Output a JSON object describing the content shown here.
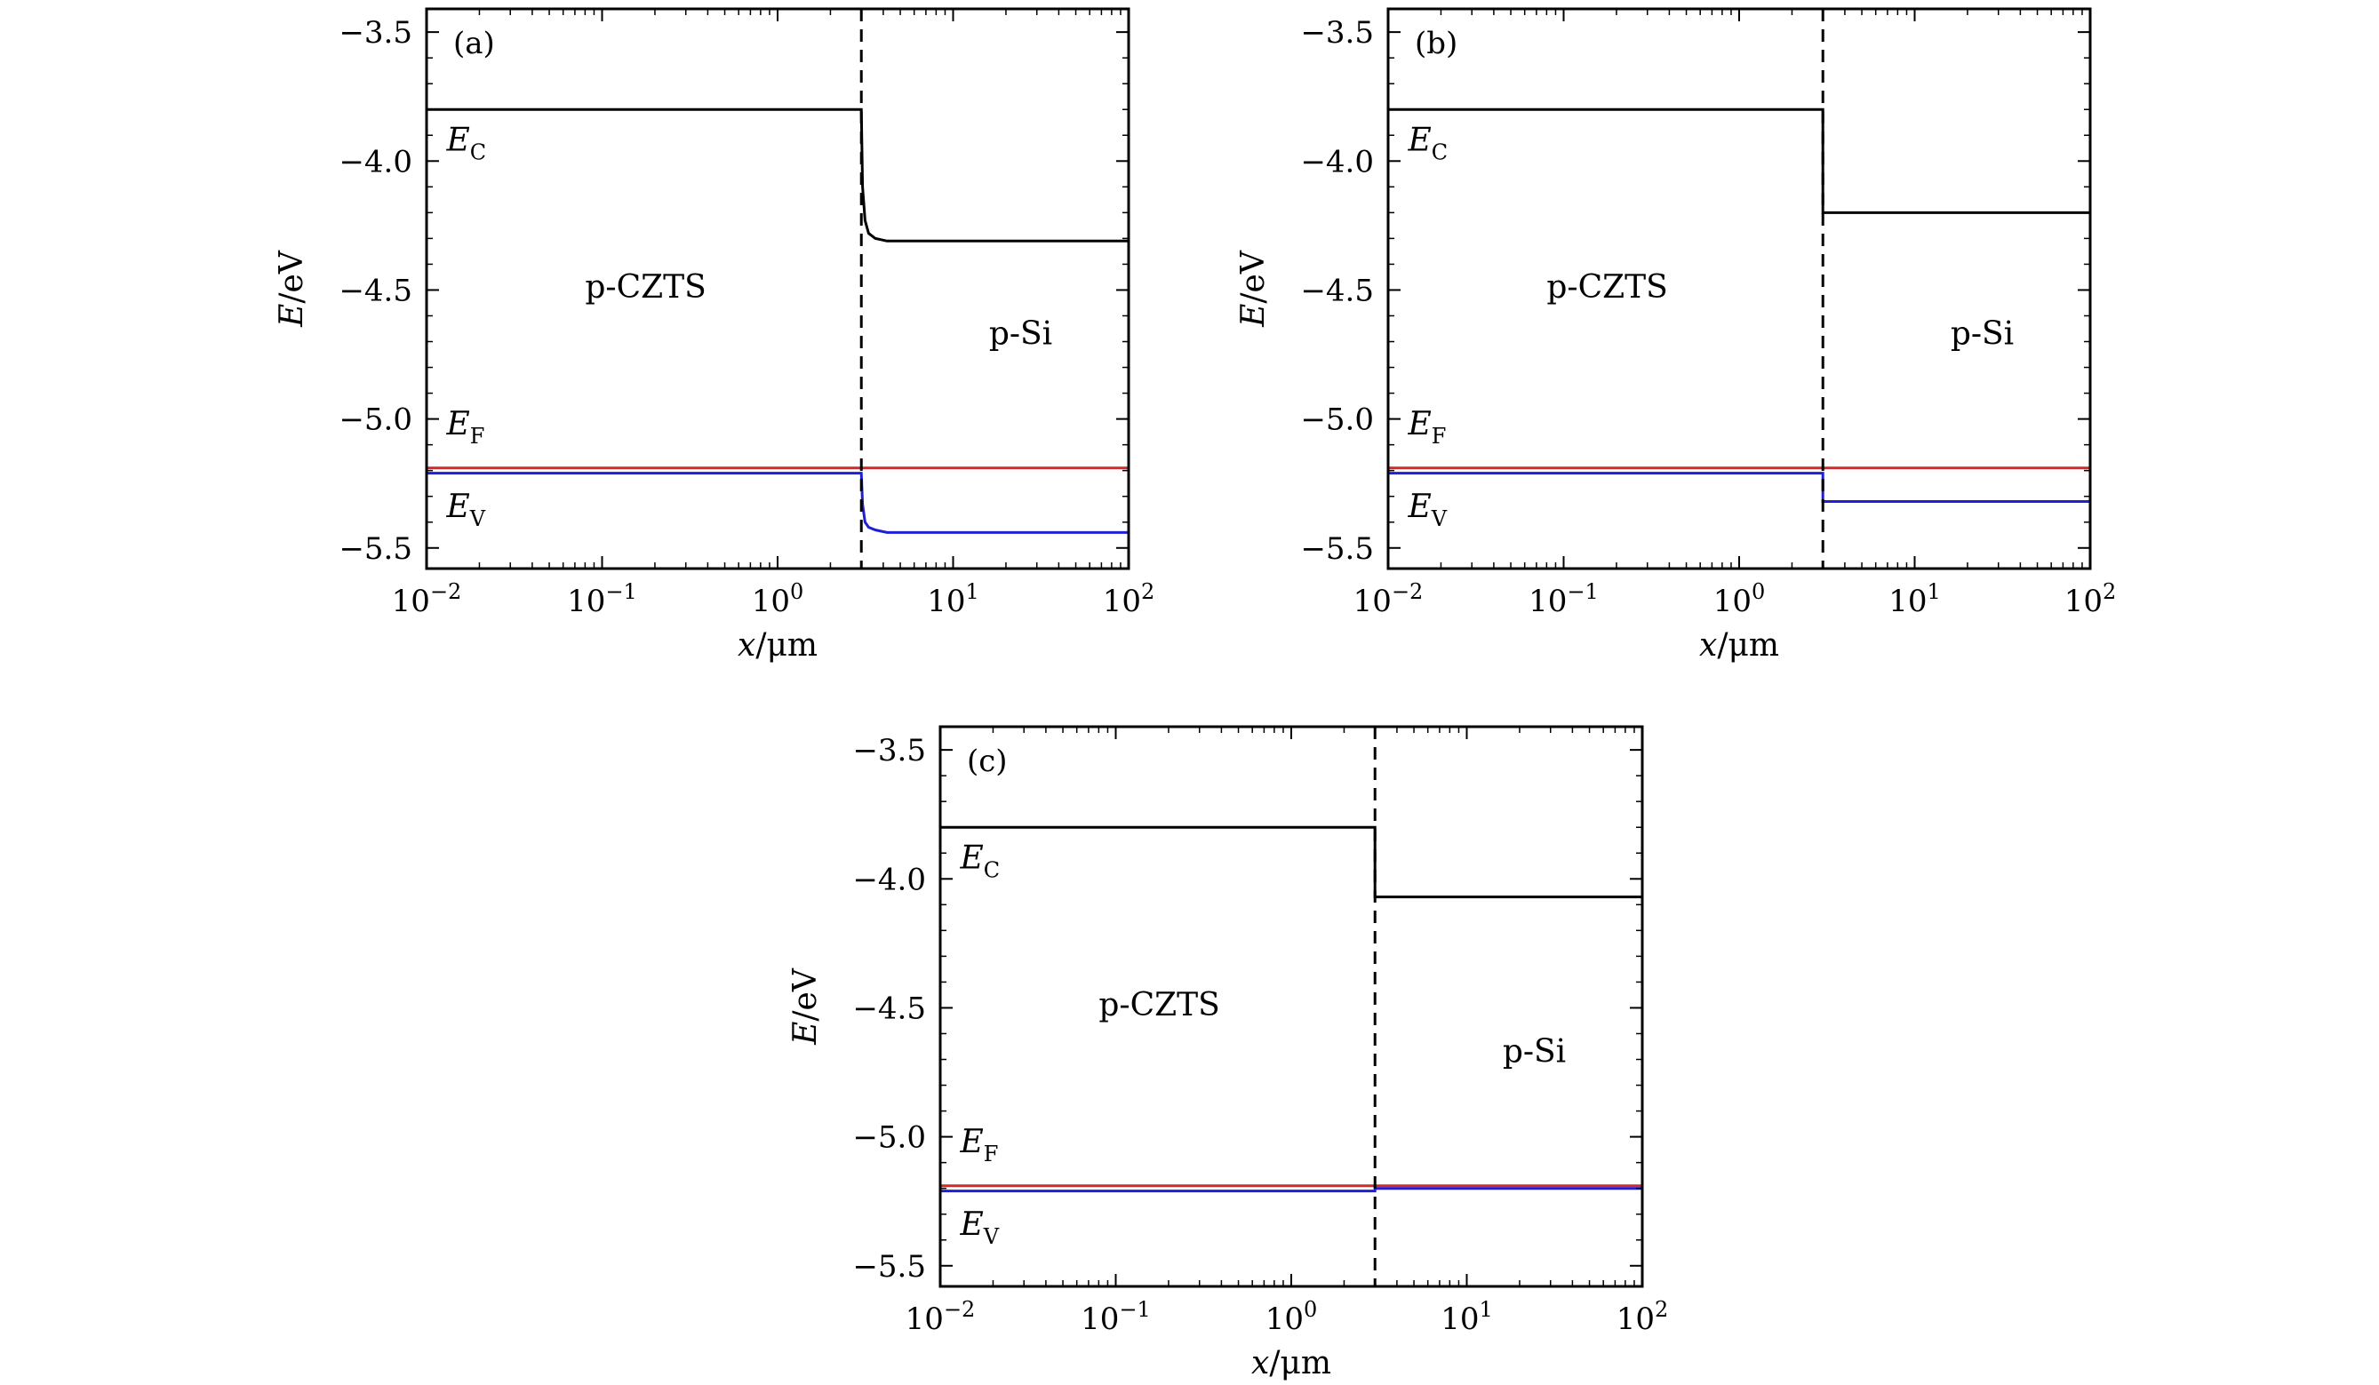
{
  "figure": {
    "panels": [
      {
        "id": "a",
        "label": "(a)"
      },
      {
        "id": "b",
        "label": "(b)"
      },
      {
        "id": "c",
        "label": "(c)"
      }
    ]
  },
  "chart_data": [
    {
      "type": "line",
      "panel_label": "(a)",
      "xlabel": "x/μm",
      "ylabel": "E/eV",
      "x_scale": "log",
      "xlim": [
        0.01,
        100
      ],
      "ylim": [
        -5.58,
        -3.41
      ],
      "xticks": [
        0.01,
        0.1,
        1,
        10,
        100
      ],
      "xtick_labels": [
        "10^-2",
        "10^-1",
        "10^0",
        "10^1",
        "10^2"
      ],
      "yticks": [
        -3.5,
        -4.0,
        -4.5,
        -5.0,
        -5.5
      ],
      "ytick_labels": [
        "−3.5",
        "−4.0",
        "−4.5",
        "−5.0",
        "−5.5"
      ],
      "interface_x": 3,
      "region_labels": [
        {
          "text": "p-CZTS",
          "x": 0.08,
          "y": -4.53
        },
        {
          "text": "p-Si",
          "x": 16,
          "y": -4.71
        }
      ],
      "level_labels": [
        {
          "main": "E",
          "sub": "C",
          "x": 0.013,
          "y": -3.96
        },
        {
          "main": "E",
          "sub": "F",
          "x": 0.013,
          "y": -5.06
        },
        {
          "main": "E",
          "sub": "V",
          "x": 0.013,
          "y": -5.38
        }
      ],
      "series": [
        {
          "name": "E_C",
          "color": "#000000",
          "x": [
            0.01,
            3.0,
            3.05,
            3.15,
            3.3,
            3.6,
            4.2,
            100
          ],
          "y": [
            -3.8,
            -3.8,
            -4.1,
            -4.23,
            -4.28,
            -4.3,
            -4.31,
            -4.31
          ]
        },
        {
          "name": "E_F",
          "color": "#d62728",
          "x": [
            0.01,
            100
          ],
          "y": [
            -5.19,
            -5.19
          ]
        },
        {
          "name": "E_V",
          "color": "#1f1fd6",
          "x": [
            0.01,
            3.0,
            3.05,
            3.15,
            3.3,
            3.6,
            4.2,
            100
          ],
          "y": [
            -5.21,
            -5.21,
            -5.33,
            -5.4,
            -5.42,
            -5.43,
            -5.44,
            -5.44
          ]
        }
      ]
    },
    {
      "type": "line",
      "panel_label": "(b)",
      "xlabel": "x/μm",
      "ylabel": "E/eV",
      "x_scale": "log",
      "xlim": [
        0.01,
        100
      ],
      "ylim": [
        -5.58,
        -3.41
      ],
      "xticks": [
        0.01,
        0.1,
        1,
        10,
        100
      ],
      "xtick_labels": [
        "10^-2",
        "10^-1",
        "10^0",
        "10^1",
        "10^2"
      ],
      "yticks": [
        -3.5,
        -4.0,
        -4.5,
        -5.0,
        -5.5
      ],
      "ytick_labels": [
        "−3.5",
        "−4.0",
        "−4.5",
        "−5.0",
        "−5.5"
      ],
      "interface_x": 3,
      "region_labels": [
        {
          "text": "p-CZTS",
          "x": 0.08,
          "y": -4.53
        },
        {
          "text": "p-Si",
          "x": 16,
          "y": -4.71
        }
      ],
      "level_labels": [
        {
          "main": "E",
          "sub": "C",
          "x": 0.013,
          "y": -3.96
        },
        {
          "main": "E",
          "sub": "F",
          "x": 0.013,
          "y": -5.06
        },
        {
          "main": "E",
          "sub": "V",
          "x": 0.013,
          "y": -5.38
        }
      ],
      "series": [
        {
          "name": "E_C",
          "color": "#000000",
          "x": [
            0.01,
            3.0,
            3.0,
            100
          ],
          "y": [
            -3.8,
            -3.8,
            -4.2,
            -4.2
          ]
        },
        {
          "name": "E_F",
          "color": "#d62728",
          "x": [
            0.01,
            100
          ],
          "y": [
            -5.19,
            -5.19
          ]
        },
        {
          "name": "E_V",
          "color": "#1f1fd6",
          "x": [
            0.01,
            3.0,
            3.0,
            100
          ],
          "y": [
            -5.21,
            -5.21,
            -5.32,
            -5.32
          ]
        }
      ]
    },
    {
      "type": "line",
      "panel_label": "(c)",
      "xlabel": "x/μm",
      "ylabel": "E/eV",
      "x_scale": "log",
      "xlim": [
        0.01,
        100
      ],
      "ylim": [
        -5.58,
        -3.41
      ],
      "xticks": [
        0.01,
        0.1,
        1,
        10,
        100
      ],
      "xtick_labels": [
        "10^-2",
        "10^-1",
        "10^0",
        "10^1",
        "10^2"
      ],
      "yticks": [
        -3.5,
        -4.0,
        -4.5,
        -5.0,
        -5.5
      ],
      "ytick_labels": [
        "−3.5",
        "−4.0",
        "−4.5",
        "−5.0",
        "−5.5"
      ],
      "interface_x": 3,
      "region_labels": [
        {
          "text": "p-CZTS",
          "x": 0.08,
          "y": -4.53
        },
        {
          "text": "p-Si",
          "x": 16,
          "y": -4.71
        }
      ],
      "level_labels": [
        {
          "main": "E",
          "sub": "C",
          "x": 0.013,
          "y": -3.96
        },
        {
          "main": "E",
          "sub": "F",
          "x": 0.013,
          "y": -5.06
        },
        {
          "main": "E",
          "sub": "V",
          "x": 0.013,
          "y": -5.38
        }
      ],
      "series": [
        {
          "name": "E_C",
          "color": "#000000",
          "x": [
            0.01,
            3.0,
            3.0,
            100
          ],
          "y": [
            -3.8,
            -3.8,
            -4.07,
            -4.07
          ]
        },
        {
          "name": "E_F",
          "color": "#d62728",
          "x": [
            0.01,
            100
          ],
          "y": [
            -5.19,
            -5.19
          ]
        },
        {
          "name": "E_V",
          "color": "#1f1fd6",
          "x": [
            0.01,
            3.0,
            3.0,
            100
          ],
          "y": [
            -5.21,
            -5.21,
            -5.2,
            -5.2
          ]
        }
      ]
    }
  ]
}
